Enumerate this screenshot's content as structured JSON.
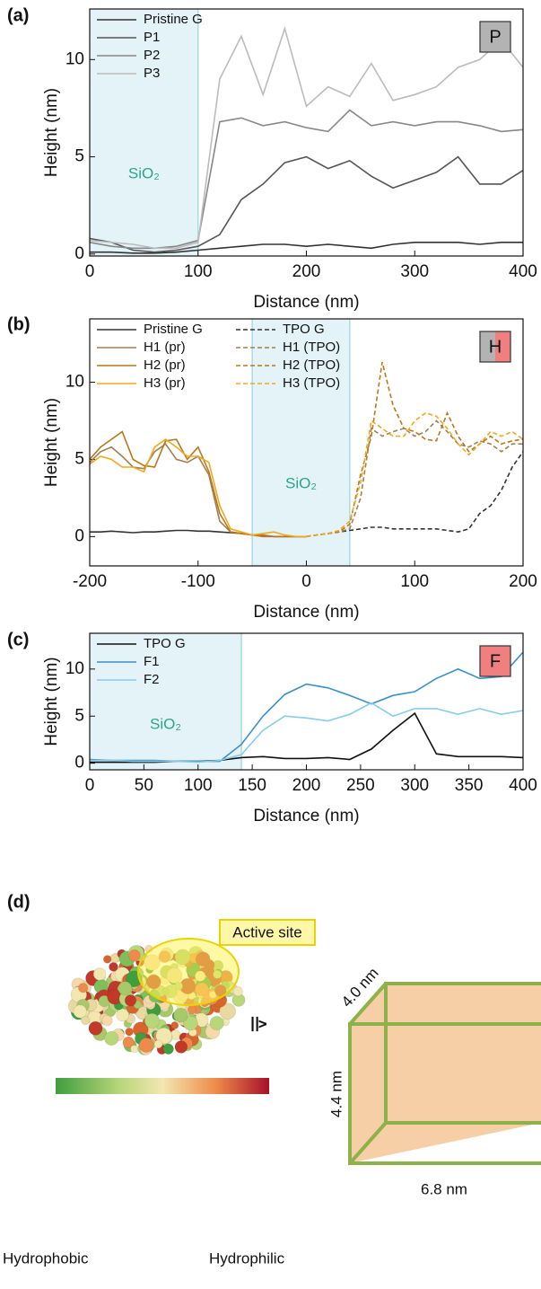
{
  "chart_data": [
    {
      "type": "line",
      "panel": "(a)",
      "xlabel": "Distance (nm)",
      "ylabel": "Height (nm)",
      "x": [
        0,
        20,
        40,
        60,
        80,
        100,
        120,
        140,
        160,
        180,
        200,
        220,
        240,
        260,
        280,
        300,
        320,
        340,
        360,
        380,
        400
      ],
      "xlim": [
        0,
        400
      ],
      "xticks": [
        0,
        100,
        200,
        300,
        400
      ],
      "ylim": [
        -0.1,
        12.6
      ],
      "yticks": [
        0,
        5,
        10
      ],
      "region": {
        "x": [
          0,
          100
        ],
        "label": "SiO₂"
      },
      "badge": {
        "label": "P",
        "colors": [
          "#b3b3b3"
        ]
      },
      "legend_columns": 1,
      "series": [
        {
          "name": "Pristine G",
          "color": "#333333",
          "dashed": false,
          "values": [
            0.1,
            0.1,
            0.05,
            0.05,
            0.1,
            0.2,
            0.3,
            0.4,
            0.5,
            0.5,
            0.4,
            0.5,
            0.4,
            0.3,
            0.5,
            0.6,
            0.6,
            0.6,
            0.5,
            0.6,
            0.6
          ]
        },
        {
          "name": "P1",
          "color": "#555555",
          "dashed": false,
          "values": [
            0.8,
            0.6,
            0.2,
            0.1,
            0.2,
            0.4,
            1.0,
            2.8,
            3.6,
            4.7,
            5.0,
            4.4,
            4.8,
            4.0,
            3.4,
            3.8,
            4.2,
            5.0,
            3.6,
            3.6,
            4.3
          ]
        },
        {
          "name": "P2",
          "color": "#888888",
          "dashed": false,
          "values": [
            0.6,
            0.4,
            0.3,
            0.3,
            0.4,
            0.7,
            6.8,
            7.0,
            6.6,
            6.8,
            6.5,
            6.3,
            7.4,
            6.6,
            6.8,
            6.6,
            6.8,
            6.8,
            6.6,
            6.3,
            6.4
          ]
        },
        {
          "name": "P3",
          "color": "#bbbbbb",
          "dashed": false,
          "values": [
            0.7,
            0.6,
            0.5,
            0.3,
            0.3,
            0.6,
            9.0,
            11.2,
            8.2,
            11.6,
            7.6,
            8.6,
            8.1,
            9.8,
            7.9,
            8.2,
            8.6,
            9.6,
            10.0,
            11.0,
            9.6
          ]
        }
      ]
    },
    {
      "type": "line",
      "panel": "(b)",
      "xlabel": "Distance (nm)",
      "ylabel": "Height (nm)",
      "x": [
        -200,
        -190,
        -180,
        -170,
        -160,
        -150,
        -140,
        -130,
        -120,
        -110,
        -100,
        -90,
        -80,
        -70,
        -60,
        -50,
        -40,
        -30,
        -20,
        -10,
        0,
        10,
        20,
        30,
        40,
        50,
        60,
        70,
        80,
        90,
        100,
        110,
        120,
        130,
        140,
        150,
        160,
        170,
        180,
        190,
        200
      ],
      "xlim": [
        -200,
        200
      ],
      "xticks": [
        -200,
        -100,
        0,
        100,
        200
      ],
      "ylim": [
        -1.9,
        14.1
      ],
      "yticks": [
        0,
        5,
        10
      ],
      "region": {
        "x": [
          -50,
          40
        ],
        "label": "SiO₂"
      },
      "badge": {
        "label": "H",
        "colors": [
          "#b3b3b3",
          "#f08080"
        ]
      },
      "legend_columns": 2,
      "series": [
        {
          "name": "Pristine G",
          "color": "#333333",
          "dashed": false,
          "values": [
            0.3,
            0.3,
            0.35,
            0.3,
            0.25,
            0.3,
            0.3,
            0.35,
            0.4,
            0.4,
            0.35,
            0.35,
            0.3,
            0.25,
            0.2,
            0.1,
            0.05,
            0,
            0,
            0,
            0,
            null,
            null,
            null,
            null,
            null,
            null,
            null,
            null,
            null,
            null,
            null,
            null,
            null,
            null,
            null,
            null,
            null,
            null,
            null,
            null
          ]
        },
        {
          "name": "H1 (pr)",
          "color": "#a08050",
          "dashed": false,
          "values": [
            4.8,
            5.5,
            5.8,
            5.2,
            4.5,
            4.4,
            5.5,
            6.0,
            5.0,
            4.8,
            5.2,
            4.0,
            1.0,
            0.3,
            0.2,
            0.1,
            0.1,
            0,
            0,
            0,
            0,
            null,
            null,
            null,
            null,
            null,
            null,
            null,
            null,
            null,
            null,
            null,
            null,
            null,
            null,
            null,
            null,
            null,
            null,
            null,
            null
          ]
        },
        {
          "name": "H2 (pr)",
          "color": "#b8781a",
          "dashed": false,
          "values": [
            5.0,
            5.8,
            6.3,
            6.8,
            5.0,
            4.6,
            4.5,
            6.2,
            6.3,
            5.0,
            5.8,
            4.2,
            1.5,
            0.3,
            0.2,
            0.1,
            0,
            0,
            0,
            0,
            0,
            null,
            null,
            null,
            null,
            null,
            null,
            null,
            null,
            null,
            null,
            null,
            null,
            null,
            null,
            null,
            null,
            null,
            null,
            null,
            null
          ]
        },
        {
          "name": "H3 (pr)",
          "color": "#f0a820",
          "dashed": false,
          "values": [
            4.7,
            5.2,
            5.0,
            4.5,
            4.5,
            4.2,
            5.8,
            6.3,
            5.8,
            5.2,
            5.2,
            4.8,
            2.0,
            0.5,
            0.3,
            0.1,
            0.2,
            0.3,
            0.1,
            0,
            0,
            null,
            null,
            null,
            null,
            null,
            null,
            null,
            null,
            null,
            null,
            null,
            null,
            null,
            null,
            null,
            null,
            null,
            null,
            null,
            null
          ]
        },
        {
          "name": "TPO G",
          "color": "#333333",
          "dashed": true,
          "values": [
            null,
            null,
            null,
            null,
            null,
            null,
            null,
            null,
            null,
            null,
            null,
            null,
            null,
            null,
            null,
            null,
            null,
            null,
            null,
            null,
            0,
            0.1,
            0.2,
            0.3,
            0.4,
            0.5,
            0.6,
            0.6,
            0.5,
            0.5,
            0.5,
            0.5,
            0.5,
            0.4,
            0.3,
            0.5,
            1.5,
            2.0,
            3.0,
            4.5,
            5.5
          ]
        },
        {
          "name": "H1 (TPO)",
          "color": "#a08050",
          "dashed": true,
          "values": [
            null,
            null,
            null,
            null,
            null,
            null,
            null,
            null,
            null,
            null,
            null,
            null,
            null,
            null,
            null,
            null,
            null,
            null,
            null,
            null,
            0,
            0.1,
            0.2,
            0.3,
            0.5,
            2.5,
            7.0,
            6.5,
            6.8,
            7.0,
            6.5,
            6.8,
            7.5,
            6.8,
            6.0,
            5.8,
            6.2,
            6.0,
            5.5,
            6.0,
            6.0
          ]
        },
        {
          "name": "H2 (TPO)",
          "color": "#b8781a",
          "dashed": true,
          "values": [
            null,
            null,
            null,
            null,
            null,
            null,
            null,
            null,
            null,
            null,
            null,
            null,
            null,
            null,
            null,
            null,
            null,
            null,
            null,
            null,
            0,
            0.1,
            0.2,
            0.3,
            0.8,
            4.0,
            6.5,
            11.3,
            8.5,
            7.0,
            6.8,
            6.3,
            6.2,
            8.0,
            6.5,
            5.5,
            6.0,
            6.5,
            6.0,
            6.2,
            6.3
          ]
        },
        {
          "name": "H3 (TPO)",
          "color": "#f0a820",
          "dashed": true,
          "values": [
            null,
            null,
            null,
            null,
            null,
            null,
            null,
            null,
            null,
            null,
            null,
            null,
            null,
            null,
            null,
            null,
            null,
            null,
            null,
            null,
            0,
            0.1,
            0.2,
            0.4,
            1.0,
            3.5,
            7.5,
            7.0,
            6.5,
            6.5,
            7.5,
            8.0,
            7.8,
            7.0,
            6.0,
            5.3,
            6.0,
            6.8,
            6.5,
            6.8,
            6.3
          ]
        }
      ]
    },
    {
      "type": "line",
      "panel": "(c)",
      "xlabel": "Distance (nm)",
      "ylabel": "Height (nm)",
      "x": [
        0,
        20,
        40,
        60,
        80,
        100,
        120,
        140,
        160,
        180,
        200,
        220,
        240,
        260,
        280,
        300,
        320,
        340,
        360,
        380,
        400
      ],
      "xlim": [
        0,
        400
      ],
      "xticks": [
        0,
        50,
        100,
        150,
        200,
        250,
        300,
        350,
        400
      ],
      "ylim": [
        -0.7,
        13.8
      ],
      "yticks": [
        0,
        5,
        10
      ],
      "region": {
        "x": [
          0,
          140
        ],
        "label": "SiO₂"
      },
      "badge": {
        "label": "F",
        "colors": [
          "#f08080"
        ]
      },
      "legend_columns": 1,
      "series": [
        {
          "name": "TPO G",
          "color": "#111111",
          "dashed": false,
          "values": [
            0.1,
            0.1,
            0.1,
            0.1,
            0.2,
            0.2,
            0.3,
            0.6,
            0.7,
            0.5,
            0.5,
            0.6,
            0.4,
            1.5,
            3.5,
            5.3,
            1.0,
            0.7,
            0.7,
            0.7,
            0.6
          ]
        },
        {
          "name": "F1",
          "color": "#3b8fc9",
          "dashed": false,
          "values": [
            0.4,
            0.3,
            0.3,
            0.3,
            0.2,
            0.2,
            0.2,
            2.0,
            5.0,
            7.3,
            8.4,
            8.0,
            7.2,
            6.3,
            7.2,
            7.6,
            9.0,
            10.0,
            9.0,
            9.2,
            11.8
          ]
        },
        {
          "name": "F2",
          "color": "#87cbea",
          "dashed": false,
          "values": [
            0.3,
            0.3,
            0.2,
            0.2,
            0.2,
            0.1,
            0.3,
            0.9,
            3.5,
            5.0,
            4.8,
            4.5,
            5.2,
            6.4,
            5.0,
            5.8,
            5.8,
            5.2,
            5.8,
            5.2,
            5.6
          ]
        }
      ]
    }
  ],
  "diagram": {
    "panel": "(d)",
    "active_site": "Active site",
    "equivalence": "≙",
    "box_depth": "4.0 nm",
    "box_height": "4.4 nm",
    "box_width": "6.8 nm",
    "scale_left": "Hydrophobic",
    "scale_right": "Hydrophilic"
  }
}
